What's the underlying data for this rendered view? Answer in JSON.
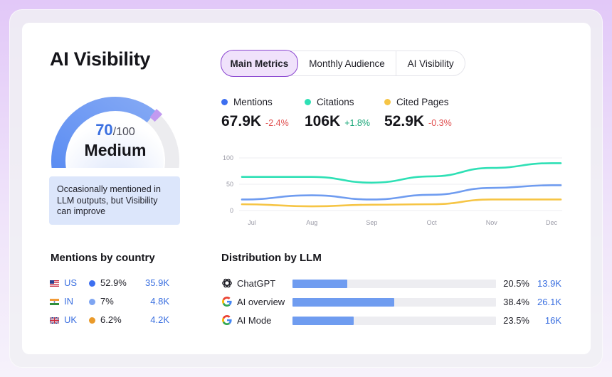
{
  "title": "AI Visibility",
  "gauge": {
    "score": "70",
    "max": "/100",
    "level": "Medium",
    "fraction": 0.7
  },
  "note": "Occasionally mentioned in LLM outputs, but Visibility can improve",
  "tabs": [
    {
      "label": "Main Metrics",
      "active": true
    },
    {
      "label": "Monthly Audience",
      "active": false
    },
    {
      "label": "AI Visibility",
      "active": false
    }
  ],
  "metrics": [
    {
      "label": "Mentions",
      "value": "67.9K",
      "delta": "-2.4%",
      "color": "#3d6ff0"
    },
    {
      "label": "Citations",
      "value": "106K",
      "delta": "+1.8%",
      "color": "#2ee0b5"
    },
    {
      "label": "Cited Pages",
      "value": "52.9K",
      "delta": "-0.3%",
      "color": "#f6c545"
    }
  ],
  "colors": {
    "accent": "#3a6fe0",
    "negative": "#e04e4e",
    "positive": "#1aa779",
    "tab_active": "#8a45d0"
  },
  "chart_data": {
    "type": "line",
    "categories": [
      "Jul",
      "Aug",
      "Sep",
      "Oct",
      "Nov",
      "Dec"
    ],
    "y_ticks": [
      "100",
      "50",
      "0"
    ],
    "ylim": [
      0,
      100
    ],
    "grid": true,
    "series": [
      {
        "name": "Citations",
        "color": "#2ee0b5",
        "x": [
          0,
          1,
          2,
          3,
          4,
          5,
          5.5
        ],
        "values": [
          64,
          64,
          53,
          65,
          81,
          90,
          90
        ]
      },
      {
        "name": "Mentions",
        "color": "#6f9cf0",
        "x": [
          0,
          1,
          2,
          3,
          4,
          5,
          5.5
        ],
        "values": [
          21,
          29,
          21,
          30,
          43,
          48,
          48
        ]
      },
      {
        "name": "Cited Pages",
        "color": "#f6c545",
        "x": [
          0,
          1,
          2,
          3,
          4,
          5,
          5.5
        ],
        "values": [
          12,
          8,
          11,
          12,
          21,
          21,
          21
        ]
      }
    ]
  },
  "countries": {
    "title": "Mentions by country",
    "rows": [
      {
        "code": "US",
        "pct": "52.9%",
        "count": "35.9K",
        "dot_color": "#3d6ff0",
        "flag": "us-flag-icon"
      },
      {
        "code": "IN",
        "pct": "7%",
        "count": "4.8K",
        "dot_color": "#7ea5f2",
        "flag": "india-flag-icon"
      },
      {
        "code": "UK",
        "pct": "6.2%",
        "count": "4.2K",
        "dot_color": "#ea9a2a",
        "flag": "uk-flag-icon"
      }
    ]
  },
  "llm": {
    "title": "Distribution by LLM",
    "rows": [
      {
        "name": "ChatGPT",
        "icon": "openai-icon",
        "pct": "20.5%",
        "count": "13.9K",
        "fill": 0.27
      },
      {
        "name": "AI overview",
        "icon": "google-icon",
        "pct": "38.4%",
        "count": "26.1K",
        "fill": 0.5
      },
      {
        "name": "AI Mode",
        "icon": "google-icon",
        "pct": "23.5%",
        "count": "16K",
        "fill": 0.3
      }
    ]
  }
}
